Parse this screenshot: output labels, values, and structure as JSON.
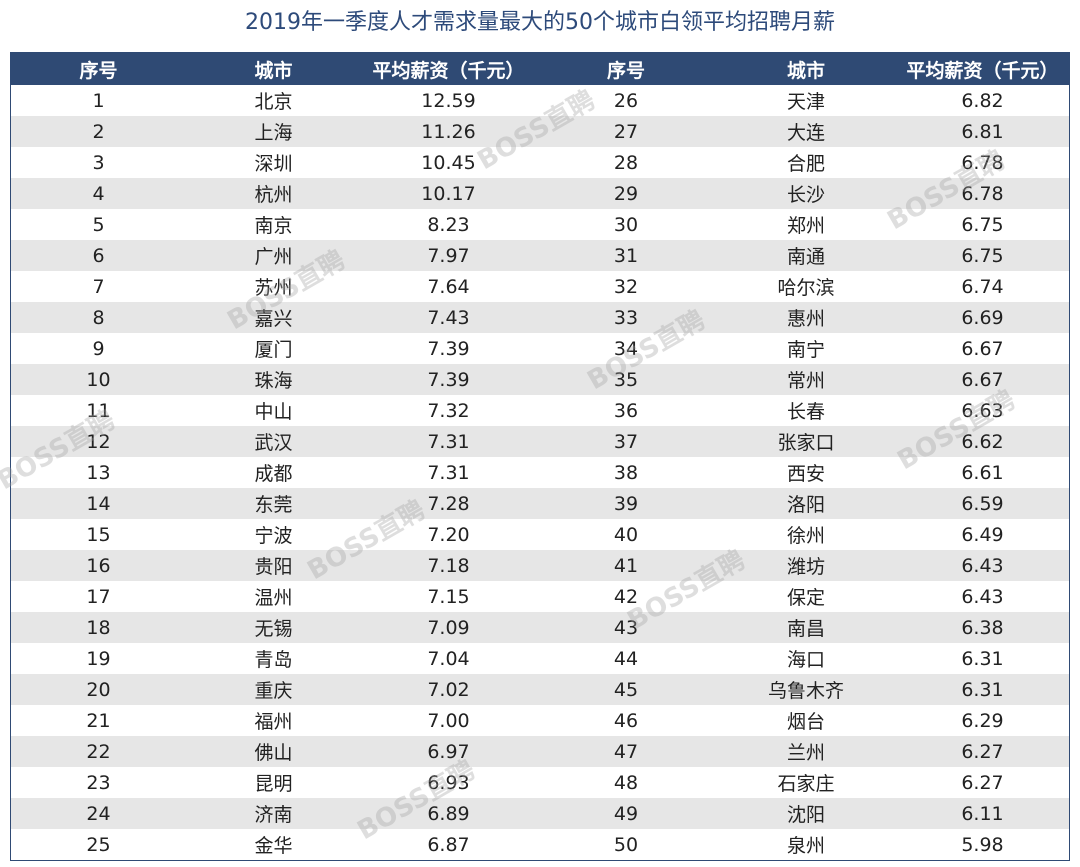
{
  "title": "2019年一季度人才需求量最大的50个城市白领平均招聘月薪",
  "watermark": "BOSS直聘",
  "table": {
    "header": [
      "序号",
      "城市",
      "平均薪资（千元）",
      "序号",
      "城市",
      "平均薪资（千元）"
    ],
    "rows": [
      [
        "1",
        "北京",
        "12.59",
        "26",
        "天津",
        "6.82"
      ],
      [
        "2",
        "上海",
        "11.26",
        "27",
        "大连",
        "6.81"
      ],
      [
        "3",
        "深圳",
        "10.45",
        "28",
        "合肥",
        "6.78"
      ],
      [
        "4",
        "杭州",
        "10.17",
        "29",
        "长沙",
        "6.78"
      ],
      [
        "5",
        "南京",
        "8.23",
        "30",
        "郑州",
        "6.75"
      ],
      [
        "6",
        "广州",
        "7.97",
        "31",
        "南通",
        "6.75"
      ],
      [
        "7",
        "苏州",
        "7.64",
        "32",
        "哈尔滨",
        "6.74"
      ],
      [
        "8",
        "嘉兴",
        "7.43",
        "33",
        "惠州",
        "6.69"
      ],
      [
        "9",
        "厦门",
        "7.39",
        "34",
        "南宁",
        "6.67"
      ],
      [
        "10",
        "珠海",
        "7.39",
        "35",
        "常州",
        "6.67"
      ],
      [
        "11",
        "中山",
        "7.32",
        "36",
        "长春",
        "6.63"
      ],
      [
        "12",
        "武汉",
        "7.31",
        "37",
        "张家口",
        "6.62"
      ],
      [
        "13",
        "成都",
        "7.31",
        "38",
        "西安",
        "6.61"
      ],
      [
        "14",
        "东莞",
        "7.28",
        "39",
        "洛阳",
        "6.59"
      ],
      [
        "15",
        "宁波",
        "7.20",
        "40",
        "徐州",
        "6.49"
      ],
      [
        "16",
        "贵阳",
        "7.18",
        "41",
        "潍坊",
        "6.43"
      ],
      [
        "17",
        "温州",
        "7.15",
        "42",
        "保定",
        "6.43"
      ],
      [
        "18",
        "无锡",
        "7.09",
        "43",
        "南昌",
        "6.38"
      ],
      [
        "19",
        "青岛",
        "7.04",
        "44",
        "海口",
        "6.31"
      ],
      [
        "20",
        "重庆",
        "7.02",
        "45",
        "乌鲁木齐",
        "6.31"
      ],
      [
        "21",
        "福州",
        "7.00",
        "46",
        "烟台",
        "6.29"
      ],
      [
        "22",
        "佛山",
        "6.97",
        "47",
        "兰州",
        "6.27"
      ],
      [
        "23",
        "昆明",
        "6.93",
        "48",
        "石家庄",
        "6.27"
      ],
      [
        "24",
        "济南",
        "6.89",
        "49",
        "沈阳",
        "6.11"
      ],
      [
        "25",
        "金华",
        "6.87",
        "50",
        "泉州",
        "5.98"
      ]
    ]
  }
}
